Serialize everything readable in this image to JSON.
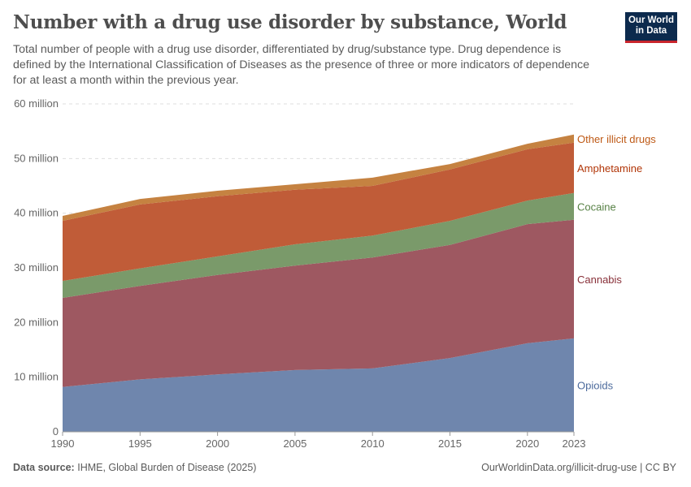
{
  "header": {
    "title": "Number with a drug use disorder by substance, World",
    "subtitle": "Total number of people with a drug use disorder, differentiated by drug/substance type. Drug dependence is defined by the International Classification of Diseases as the presence of three or more indicators of dependence for at least a month within the previous year.",
    "logo": "Our World in Data"
  },
  "footer": {
    "source_label": "Data source:",
    "source": "IHME, Global Burden of Disease (2025)",
    "link": "OurWorldinData.org/illicit-drug-use | CC BY"
  },
  "chart_data": {
    "type": "area",
    "stacked": true,
    "grid": "horizontal dashed",
    "legend": "right, inline labels",
    "x": [
      1990,
      1995,
      2000,
      2005,
      2010,
      2015,
      2020,
      2023
    ],
    "xticks": [
      "1990",
      "1995",
      "2000",
      "2005",
      "2010",
      "2015",
      "2020",
      "2023"
    ],
    "ylim": [
      0,
      60000000
    ],
    "yticks": [
      {
        "v": 0,
        "label": "0"
      },
      {
        "v": 10000000,
        "label": "10 million"
      },
      {
        "v": 20000000,
        "label": "20 million"
      },
      {
        "v": 30000000,
        "label": "30 million"
      },
      {
        "v": 40000000,
        "label": "40 million"
      },
      {
        "v": 50000000,
        "label": "50 million"
      },
      {
        "v": 60000000,
        "label": "60 million"
      }
    ],
    "series": [
      {
        "name": "Opioids",
        "color": "#6f86ad",
        "label_color": "#4c6a9c",
        "values": [
          8200000,
          9600000,
          10500000,
          11300000,
          11600000,
          13500000,
          16200000,
          17100000
        ]
      },
      {
        "name": "Cannabis",
        "color": "#9e5861",
        "label_color": "#883039",
        "values": [
          16300000,
          17100000,
          18200000,
          19100000,
          20300000,
          20700000,
          21800000,
          21700000
        ]
      },
      {
        "name": "Cocaine",
        "color": "#7a9a6a",
        "label_color": "#578145",
        "values": [
          3100000,
          3200000,
          3400000,
          3900000,
          4000000,
          4400000,
          4300000,
          4900000
        ]
      },
      {
        "name": "Amphetamine",
        "color": "#c05c38",
        "label_color": "#b13507",
        "values": [
          11000000,
          11700000,
          11000000,
          10000000,
          9100000,
          9400000,
          9400000,
          9200000
        ]
      },
      {
        "name": "Other illicit drugs",
        "color": "#c58241",
        "label_color": "#be5915",
        "values": [
          900000,
          1000000,
          1000000,
          1000000,
          1500000,
          1000000,
          1000000,
          1500000
        ]
      }
    ]
  }
}
